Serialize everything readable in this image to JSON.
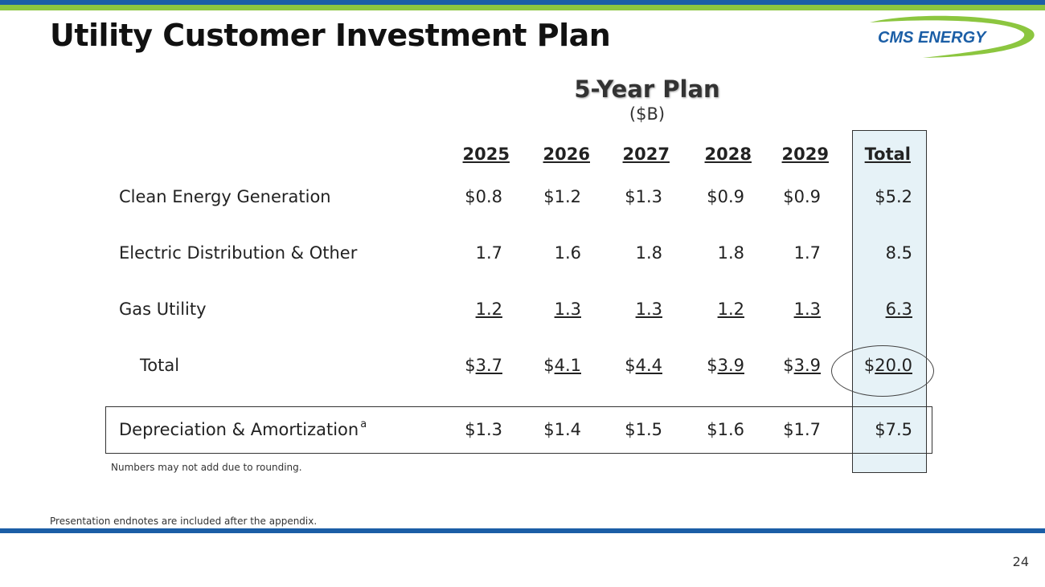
{
  "header": {
    "title": "Utility Customer Investment Plan",
    "logo_text": "CMS ENERGY",
    "colors": {
      "accent_blue": "#1b5ea6",
      "accent_green": "#8cc63f"
    }
  },
  "plan": {
    "title": "5-Year Plan",
    "units": "($B)"
  },
  "table": {
    "columns": [
      "2025",
      "2026",
      "2027",
      "2028",
      "2029",
      "Total"
    ],
    "rows": [
      {
        "label": "Clean Energy Generation",
        "values": [
          "$0.8",
          "$1.2",
          "$1.3",
          "$0.9",
          "$0.9",
          "$5.2"
        ]
      },
      {
        "label": "Electric Distribution & Other",
        "values": [
          "1.7",
          "1.6",
          "1.8",
          "1.8",
          "1.7",
          "8.5"
        ]
      },
      {
        "label": "Gas Utility",
        "values": [
          "1.2",
          "1.3",
          "1.3",
          "1.2",
          "1.3",
          "6.3"
        ]
      },
      {
        "label": "Total",
        "currency": "$",
        "values": [
          "3.7",
          "4.1",
          "4.4",
          "3.9",
          "3.9",
          "20.0"
        ]
      }
    ],
    "depreciation": {
      "label": "Depreciation & Amortization",
      "footnote_marker": "a",
      "values": [
        "$1.3",
        "$1.4",
        "$1.5",
        "$1.6",
        "$1.7",
        "$7.5"
      ]
    },
    "total_column_fill": "#e6f2f7"
  },
  "footnotes": {
    "rounding": "Numbers may not add due to rounding.",
    "endnotes": "Presentation endnotes are included after the appendix."
  },
  "page_number": "24"
}
